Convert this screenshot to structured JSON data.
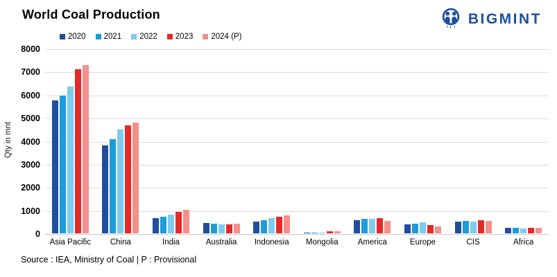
{
  "header": {
    "title": "World Coal Production",
    "logo_text": "BIGMINT",
    "logo_color": "#1D4F9F"
  },
  "footer": {
    "source": "Source : IEA, Ministry of Coal | P : Provisional"
  },
  "chart_data": {
    "type": "bar",
    "title": "World Coal Production",
    "xlabel": "",
    "ylabel": "Qty in mnt",
    "ylim": [
      0,
      8000
    ],
    "ytick_step": 1000,
    "grid": true,
    "legend_position": "top-left",
    "gridline_color": "#dcdcdc",
    "categories": [
      "Asia Pacific",
      "China",
      "India",
      "Australia",
      "Indonesia",
      "Mongolia",
      "America",
      "Europe",
      "CIS",
      "Africa"
    ],
    "series": [
      {
        "name": "2020",
        "color": "#1F4E9F",
        "values": [
          5750,
          3820,
          660,
          440,
          520,
          40,
          560,
          390,
          520,
          240
        ]
      },
      {
        "name": "2021",
        "color": "#1E9BD9",
        "values": [
          5950,
          4070,
          730,
          410,
          580,
          30,
          620,
          430,
          530,
          230
        ]
      },
      {
        "name": "2022",
        "color": "#7ECBEF",
        "values": [
          6350,
          4490,
          820,
          380,
          650,
          40,
          630,
          470,
          510,
          210
        ]
      },
      {
        "name": "2023",
        "color": "#E42A28",
        "values": [
          7100,
          4660,
          930,
          400,
          720,
          80,
          650,
          350,
          560,
          250
        ]
      },
      {
        "name": "2024 (P)",
        "color": "#F5908A",
        "values": [
          7280,
          4780,
          1010,
          420,
          790,
          90,
          530,
          310,
          530,
          230
        ]
      }
    ]
  }
}
